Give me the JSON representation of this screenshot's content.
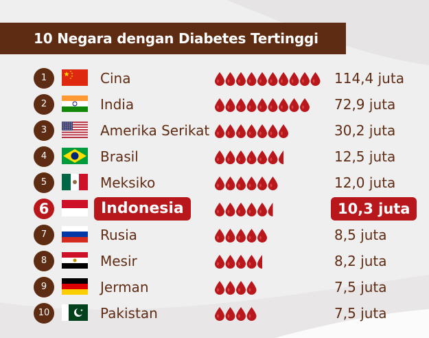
{
  "title": "10 Negara dengan Diabetes Tertinggi",
  "highlight_color": "#b8171c",
  "accent_color": "#5e2b13",
  "icon": "blood-drop-icon",
  "rows": [
    {
      "rank": "1",
      "country": "Cina",
      "value_label": "114,4 juta",
      "flag": "china"
    },
    {
      "rank": "2",
      "country": "India",
      "value_label": "72,9 juta",
      "flag": "india"
    },
    {
      "rank": "3",
      "country": "Amerika Serikat",
      "value_label": "30,2 juta",
      "flag": "usa"
    },
    {
      "rank": "4",
      "country": "Brasil",
      "value_label": "12,5 juta",
      "flag": "brazil"
    },
    {
      "rank": "5",
      "country": "Meksiko",
      "value_label": "12,0 juta",
      "flag": "mexico"
    },
    {
      "rank": "6",
      "country": "Indonesia",
      "value_label": "10,3 juta",
      "flag": "indonesia",
      "highlight": true
    },
    {
      "rank": "7",
      "country": "Rusia",
      "value_label": "8,5 juta",
      "flag": "russia"
    },
    {
      "rank": "8",
      "country": "Mesir",
      "value_label": "8,2 juta",
      "flag": "egypt"
    },
    {
      "rank": "9",
      "country": "Jerman",
      "value_label": "7,5 juta",
      "flag": "germany"
    },
    {
      "rank": "10",
      "country": "Pakistan",
      "value_label": "7,5 juta",
      "flag": "pakistan"
    }
  ],
  "chart_data": {
    "type": "bar",
    "title": "10 Negara dengan Diabetes Tertinggi",
    "unit": "juta",
    "categories": [
      "Cina",
      "India",
      "Amerika Serikat",
      "Brasil",
      "Meksiko",
      "Indonesia",
      "Rusia",
      "Mesir",
      "Jerman",
      "Pakistan"
    ],
    "values": [
      114.4,
      72.9,
      30.2,
      12.5,
      12.0,
      10.3,
      8.5,
      8.2,
      7.5,
      7.5
    ],
    "drop_counts": [
      10,
      9,
      7,
      6.5,
      6,
      5.5,
      5,
      4.5,
      4,
      4
    ]
  }
}
